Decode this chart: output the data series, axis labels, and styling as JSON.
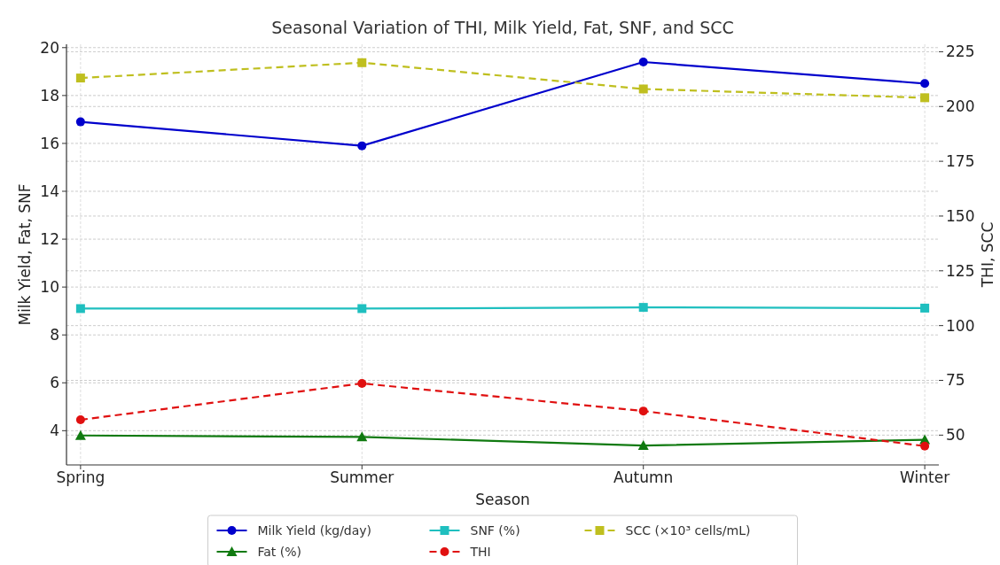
{
  "chart_data": {
    "type": "line",
    "title": "Seasonal Variation of THI, Milk Yield, Fat, SNF, and SCC",
    "xlabel": "Season",
    "ylabel": "Milk Yield, Fat, SNF",
    "y2label": "THI, SCC",
    "categories": [
      "Spring",
      "Summer",
      "Autumn",
      "Winter"
    ],
    "series": [
      {
        "name": "Milk Yield (kg/day)",
        "color": "#0000cc",
        "values": [
          16.9,
          15.9,
          19.4,
          18.5
        ],
        "marker": "circle",
        "line_style": "solid"
      },
      {
        "name": "Fat (%)",
        "color": "#107a10",
        "values": [
          3.8,
          3.74,
          3.38,
          3.62
        ],
        "marker": "triangle",
        "line_style": "solid"
      },
      {
        "name": "SNF (%)",
        "color": "#1fbfbf",
        "values": [
          9.1,
          9.1,
          9.15,
          9.12
        ],
        "marker": "square",
        "line_style": "solid"
      },
      {
        "name": "THI",
        "color": "#e01010",
        "values": [
          57,
          73.6,
          61,
          45
        ],
        "marker": "circle",
        "line_style": "dashed",
        "axis": "y2"
      },
      {
        "name": "SCC (×10³ cells/mL)",
        "color": "#bfbf1f",
        "values": [
          213,
          220,
          208,
          204
        ],
        "marker": "square",
        "line_style": "dashed",
        "axis": "y2"
      }
    ],
    "ylim": [
      2.57,
      20.14
    ],
    "yticks": [
      4,
      6,
      8,
      10,
      12,
      14,
      16,
      18,
      20
    ],
    "y2lim": [
      36.4,
      228.4
    ],
    "y2ticks": [
      50,
      75,
      100,
      125,
      150,
      175,
      200,
      225
    ],
    "grid": true,
    "legend": "bottom"
  }
}
